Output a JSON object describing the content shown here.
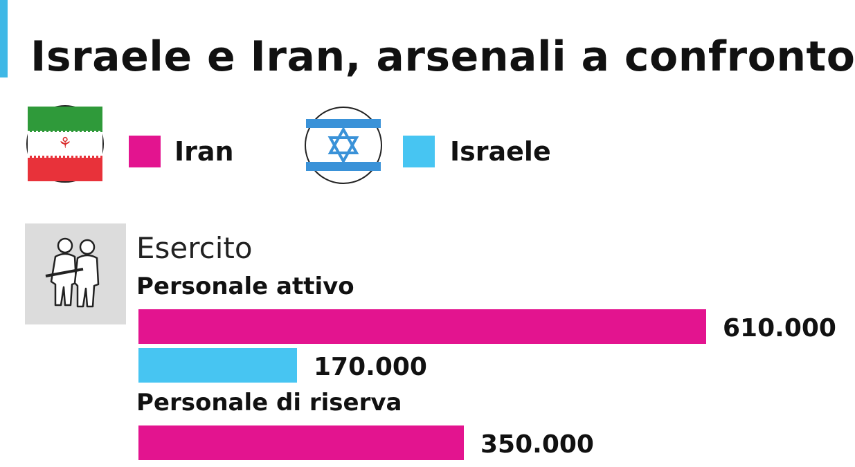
{
  "title": "Israele e Iran, arsenali a confronto",
  "legend": {
    "iran": {
      "label": "Iran",
      "color": "#e3148f"
    },
    "israel": {
      "label": "Israele",
      "color": "#47c5f2"
    }
  },
  "section": {
    "title": "Esercito",
    "icon": "soldiers-icon"
  },
  "chart_data": {
    "type": "bar",
    "orientation": "horizontal",
    "categories": [
      "Personale attivo",
      "Personale di riserva"
    ],
    "series": [
      {
        "name": "Iran",
        "values": [
          610000,
          350000
        ],
        "labels": [
          "610.000",
          "350.000"
        ],
        "color": "#e3148f"
      },
      {
        "name": "Israele",
        "values": [
          170000,
          null
        ],
        "labels": [
          "170.000",
          ""
        ],
        "color": "#47c5f2"
      }
    ],
    "xlim": [
      0,
      610000
    ],
    "grid": false,
    "legend_position": "top"
  }
}
